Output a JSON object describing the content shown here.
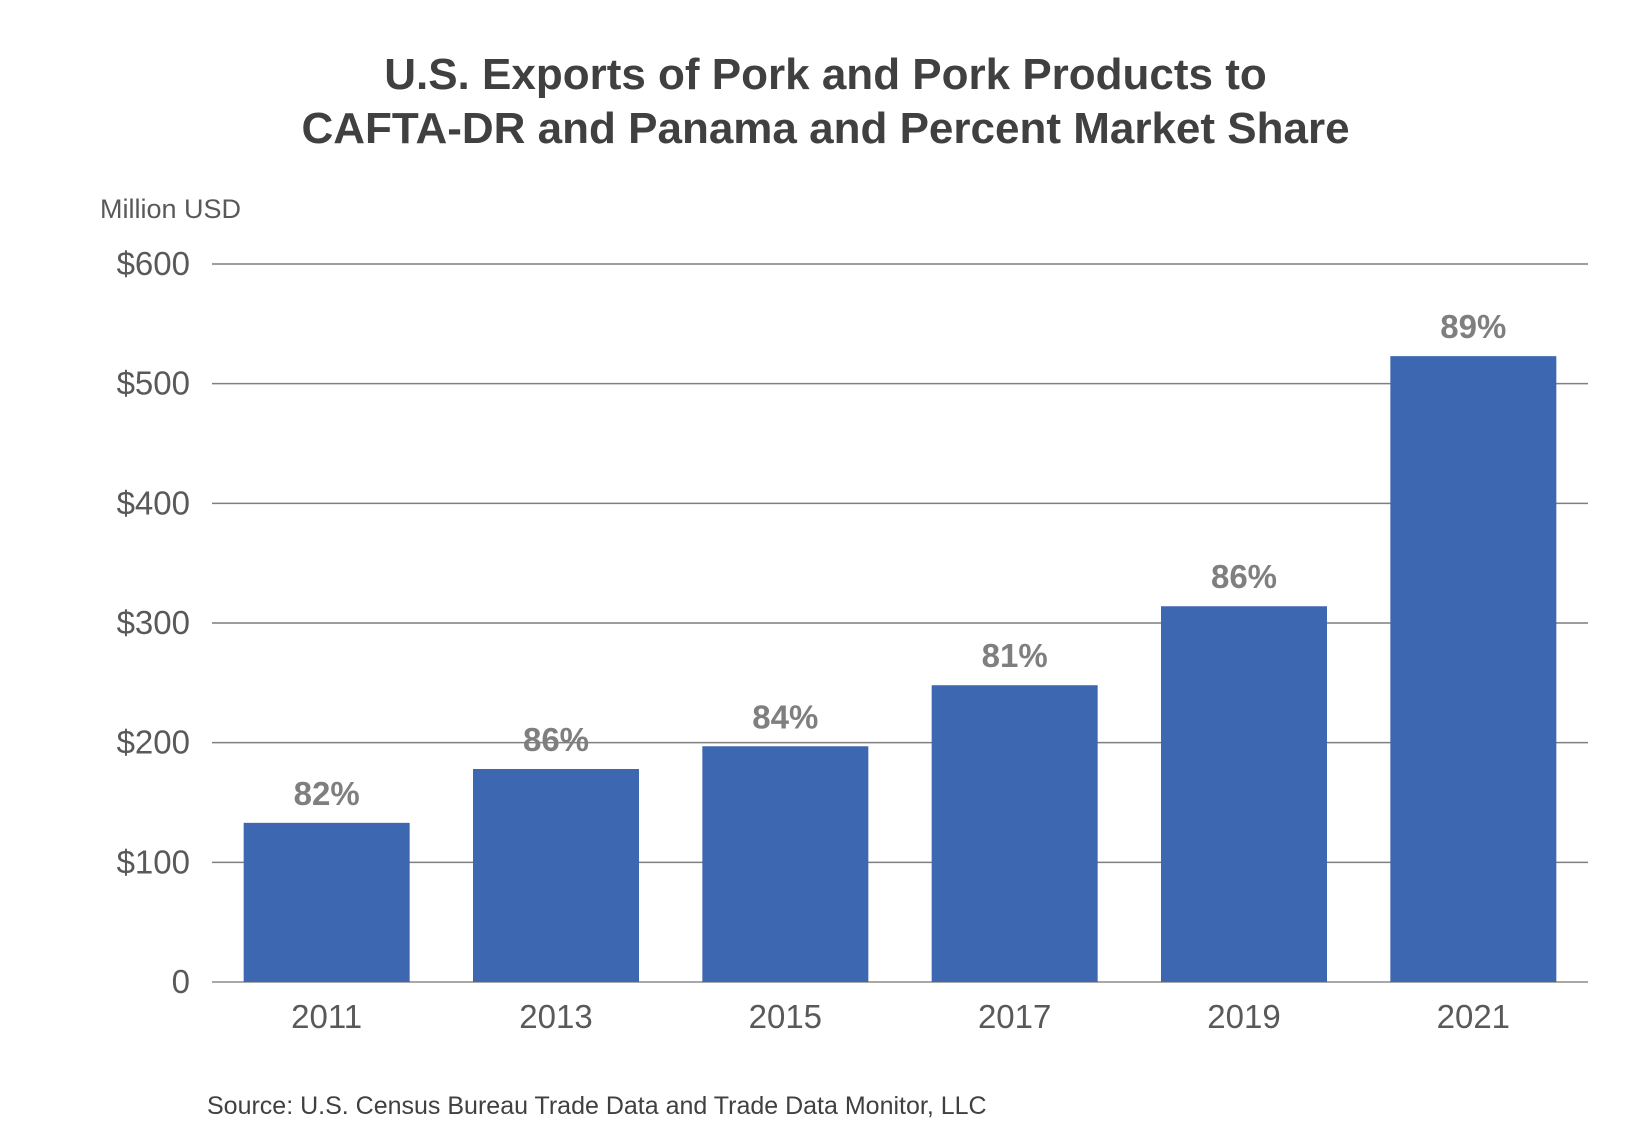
{
  "chart_data": {
    "type": "bar",
    "title_lines": [
      "U.S. Exports of Pork and Pork Products to",
      "CAFTA-DR and Panama and Percent Market Share"
    ],
    "ylabel": "Million USD",
    "ylim": [
      0,
      600
    ],
    "yticks": [
      {
        "value": 0,
        "label": "0"
      },
      {
        "value": 100,
        "label": "$100"
      },
      {
        "value": 200,
        "label": "$200"
      },
      {
        "value": 300,
        "label": "$300"
      },
      {
        "value": 400,
        "label": "$400"
      },
      {
        "value": 500,
        "label": "$500"
      },
      {
        "value": 600,
        "label": "$600"
      }
    ],
    "categories": [
      "2011",
      "2013",
      "2015",
      "2017",
      "2019",
      "2021"
    ],
    "values": [
      133,
      178,
      197,
      248,
      314,
      523
    ],
    "data_labels": [
      "82%",
      "86%",
      "84%",
      "81%",
      "86%",
      "89%"
    ],
    "grid": true,
    "bar_color": "#3e67b1"
  },
  "source": "Source: U.S. Census Bureau Trade Data and Trade Data Monitor, LLC"
}
